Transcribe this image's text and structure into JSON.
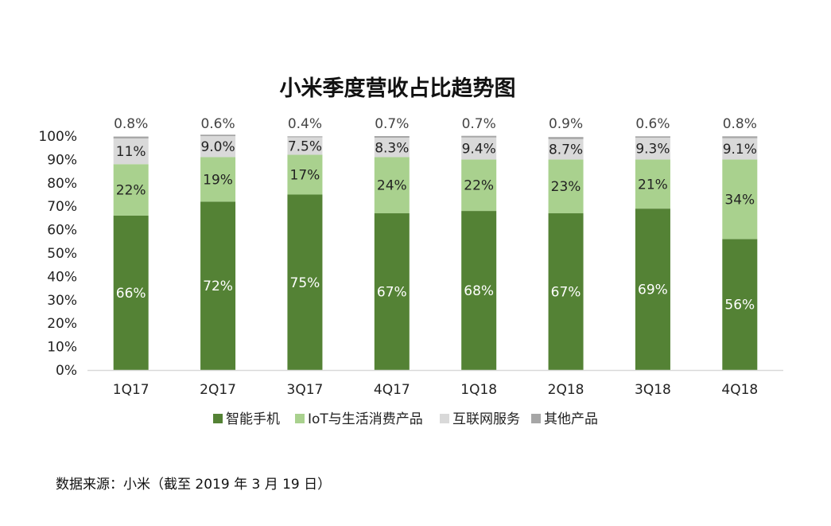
{
  "chart_data": {
    "type": "bar",
    "stacked": true,
    "title": "小米季度营收占比趋势图",
    "categories": [
      "1Q17",
      "2Q17",
      "3Q17",
      "4Q17",
      "1Q18",
      "2Q18",
      "3Q18",
      "4Q18"
    ],
    "series": [
      {
        "name": "智能手机",
        "color": "#548235",
        "values": [
          66,
          72,
          75,
          67,
          68,
          67,
          69,
          56
        ],
        "labels": [
          "66%",
          "72%",
          "75%",
          "67%",
          "68%",
          "67%",
          "69%",
          "56%"
        ]
      },
      {
        "name": "IoT与生活消费产品",
        "color": "#a9d18e",
        "values": [
          22,
          19,
          17,
          24,
          22,
          23,
          21,
          34
        ],
        "labels": [
          "22%",
          "19%",
          "17%",
          "24%",
          "22%",
          "23%",
          "21%",
          "34%"
        ]
      },
      {
        "name": "互联网服务",
        "color": "#d9d9d9",
        "values": [
          11,
          9.0,
          7.5,
          8.3,
          9.4,
          8.7,
          9.3,
          9.1
        ],
        "labels": [
          "11%",
          "9.0%",
          "7.5%",
          "8.3%",
          "9.4%",
          "8.7%",
          "9.3%",
          "9.1%"
        ]
      },
      {
        "name": "其他产品",
        "color": "#a6a6a6",
        "values": [
          0.8,
          0.6,
          0.4,
          0.7,
          0.7,
          0.9,
          0.6,
          0.8
        ],
        "labels": [
          "0.8%",
          "0.6%",
          "0.4%",
          "0.7%",
          "0.7%",
          "0.9%",
          "0.6%",
          "0.8%"
        ]
      }
    ],
    "y_ticks": [
      "0%",
      "10%",
      "20%",
      "30%",
      "40%",
      "50%",
      "60%",
      "70%",
      "80%",
      "90%",
      "100%"
    ],
    "ylim": [
      0,
      100
    ],
    "grid": false,
    "legend_position": "bottom"
  },
  "source_note": "数据来源：小米（截至 2019 年 3 月 19 日）"
}
